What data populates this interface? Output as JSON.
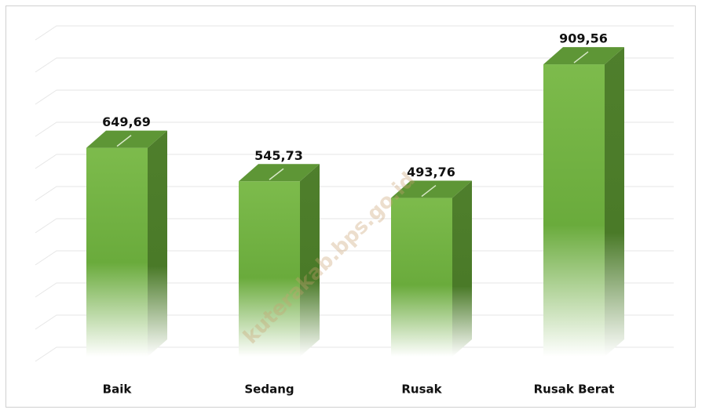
{
  "chart_data": {
    "type": "bar3d",
    "categories": [
      "Baik",
      "Sedang",
      "Rusak",
      "Rusak Berat"
    ],
    "values": [
      649.69,
      545.73,
      493.76,
      909.56
    ],
    "value_labels": [
      "649,69",
      "545,73",
      "493,76",
      "909,56"
    ],
    "color": "#72b043",
    "ylim": [
      0,
      1000
    ],
    "yticks": [
      0,
      100,
      200,
      300,
      400,
      500,
      600,
      700,
      800,
      900,
      1000
    ],
    "grid": true,
    "watermark": "kuterakab.bps.go.id"
  }
}
